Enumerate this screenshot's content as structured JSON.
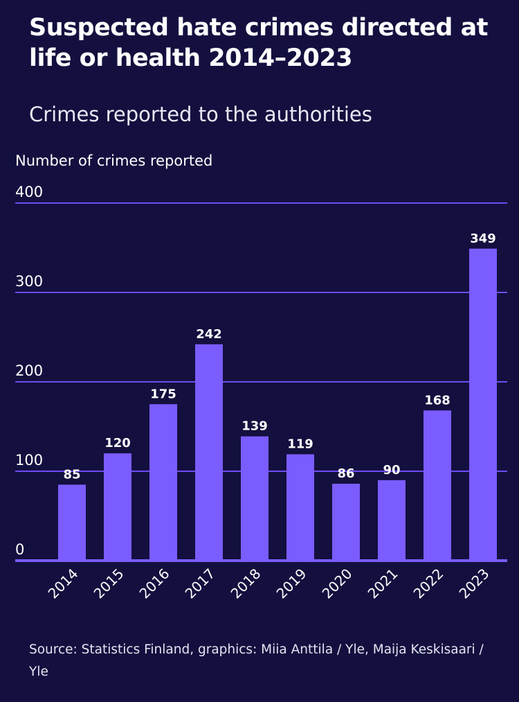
{
  "title": "Suspected hate crimes directed at life or health 2014–2023",
  "subtitle": "Crimes reported to the authorities",
  "source": "Source: Statistics Finland, graphics: Miia Anttila / Yle, Maija Keskisaari / Yle",
  "colors": {
    "background": "#13103f",
    "bar": "#7b5cff",
    "gridline": "#6d4df2",
    "text": "#ffffff"
  },
  "chart_data": {
    "type": "bar",
    "ylabel": "Number of crimes reported",
    "xlabel": "",
    "categories": [
      "2014",
      "2015",
      "2016",
      "2017",
      "2018",
      "2019",
      "2020",
      "2021",
      "2022",
      "2023"
    ],
    "values": [
      85,
      120,
      175,
      242,
      139,
      119,
      86,
      90,
      168,
      349
    ],
    "ylim": [
      0,
      400
    ],
    "yticks": [
      0,
      100,
      200,
      300,
      400
    ],
    "grid": true,
    "data_labels": true,
    "legend": "none"
  }
}
